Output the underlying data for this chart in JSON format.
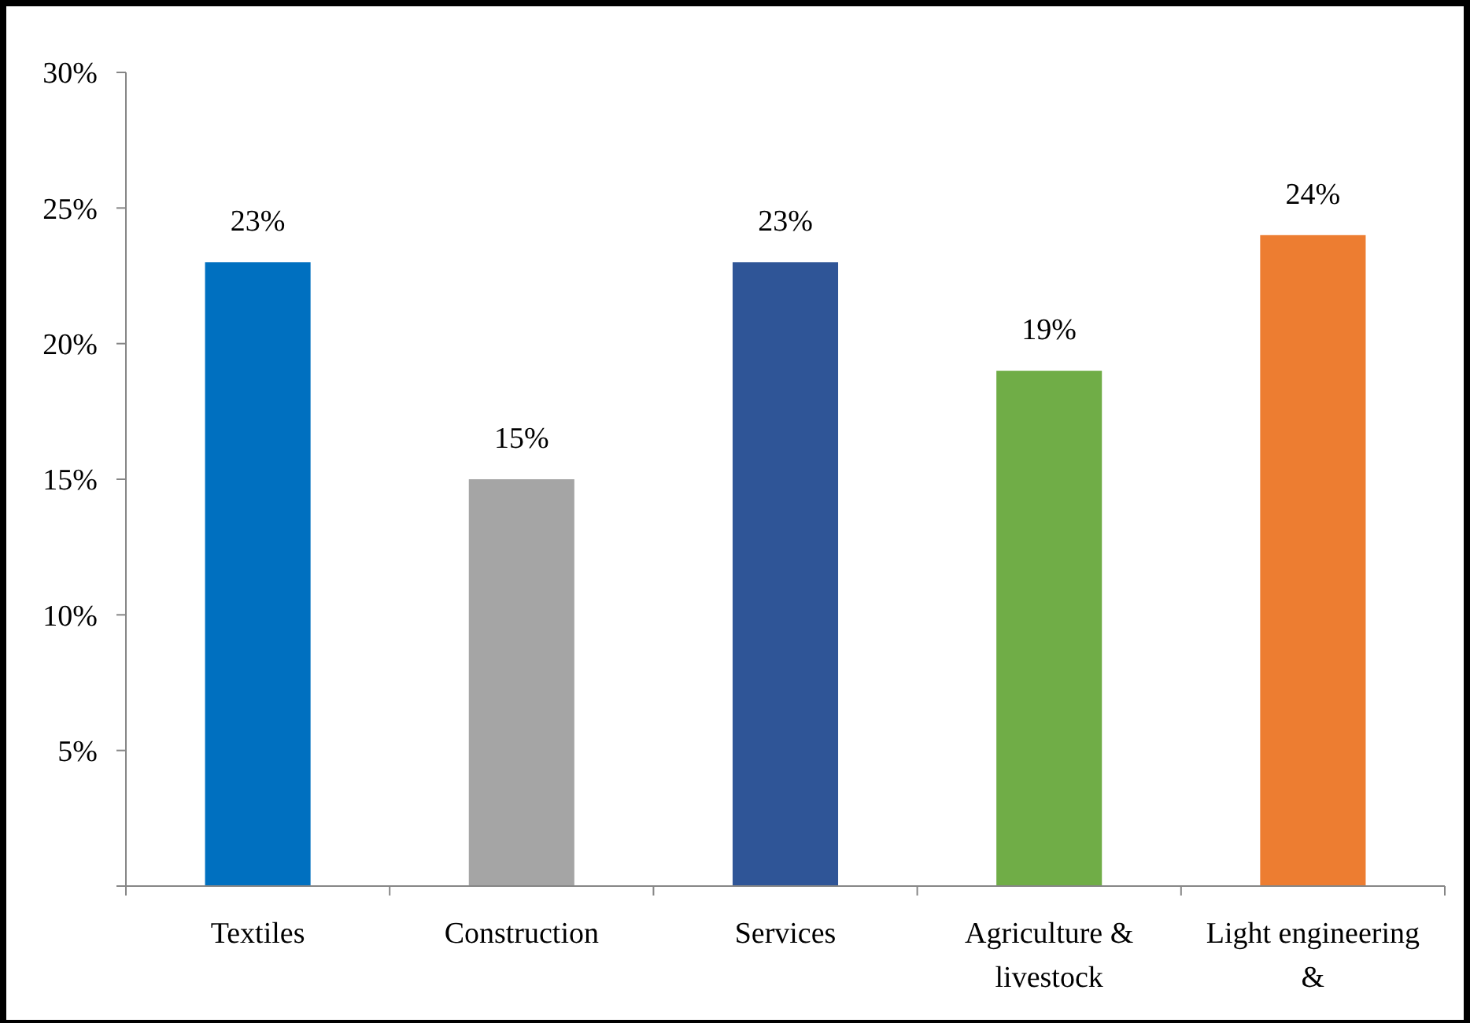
{
  "chart_data": {
    "type": "bar",
    "categories": [
      "Textiles",
      "Construction",
      "Services",
      "Agriculture & livestock",
      "Light engineering &"
    ],
    "values": [
      23,
      15,
      23,
      19,
      24
    ],
    "colors": [
      "#0070c0",
      "#a5a5a5",
      "#2f5597",
      "#70ad47",
      "#ed7d31"
    ],
    "ylim": [
      0,
      30
    ],
    "yticks": [
      {
        "value": 0,
        "label": null
      },
      {
        "value": 5,
        "label": "5%"
      },
      {
        "value": 10,
        "label": "10%"
      },
      {
        "value": 15,
        "label": "15%"
      },
      {
        "value": 20,
        "label": "20%"
      },
      {
        "value": 25,
        "label": "25%"
      },
      {
        "value": 30,
        "label": "30%"
      }
    ],
    "value_labels": [
      "23%",
      "15%",
      "23%",
      "19%",
      "24%"
    ],
    "grid": false
  }
}
